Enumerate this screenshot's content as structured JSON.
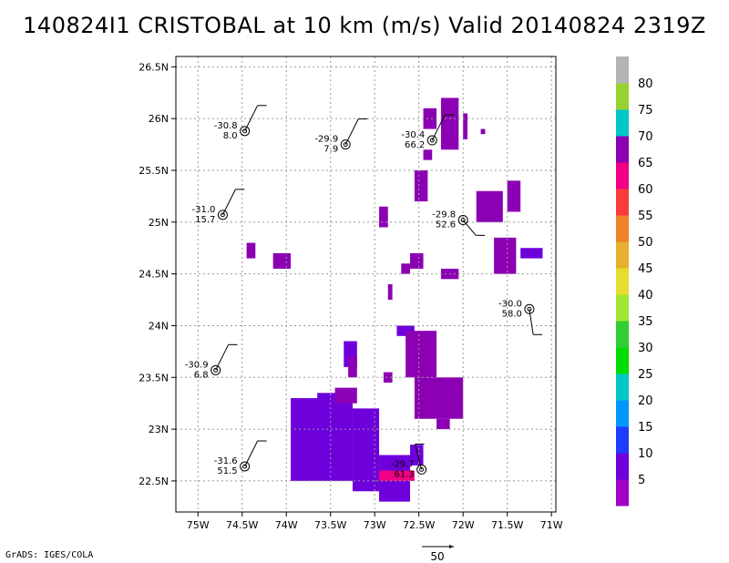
{
  "chart_data": {
    "type": "heatmap",
    "title": "140824I1 CRISTOBAL at 10 km (m/s) Valid 20140824 2319Z",
    "x_ticks": [
      "75W",
      "74.5W",
      "74W",
      "73.5W",
      "73W",
      "72.5W",
      "72W",
      "71.5W",
      "71W"
    ],
    "x_tick_values": [
      -75,
      -74.5,
      -74,
      -73.5,
      -73,
      -72.5,
      -72,
      -71.5,
      -71
    ],
    "y_ticks": [
      "22.5N",
      "23N",
      "23.5N",
      "24N",
      "24.5N",
      "25N",
      "25.5N",
      "26N",
      "26.5N"
    ],
    "y_tick_values": [
      22.5,
      23,
      23.5,
      24,
      24.5,
      25,
      25.5,
      26,
      26.5
    ],
    "xlim": [
      -75.25,
      -70.95
    ],
    "ylim": [
      22.2,
      26.6
    ],
    "grid": true,
    "colorbar": {
      "labels": [
        "5",
        "10",
        "15",
        "20",
        "25",
        "30",
        "35",
        "40",
        "45",
        "50",
        "55",
        "60",
        "65",
        "70",
        "75",
        "80"
      ],
      "colors": [
        "#a000c8",
        "#6e00dc",
        "#1e3cff",
        "#0096ff",
        "#00c8c8",
        "#00dc00",
        "#32cd32",
        "#a0e632",
        "#e6dc32",
        "#e6af2d",
        "#f08228",
        "#fa3c3c",
        "#f00082",
        "#8c00b4",
        "#00c8c8",
        "#96d232",
        "#b4b4b4"
      ]
    },
    "wind_speed_regions": [
      {
        "speed": "10",
        "cells": [
          [
            -73.95,
            23.3,
            -73.25,
            22.5
          ],
          [
            -73.25,
            23.2,
            -72.95,
            22.4
          ],
          [
            -72.95,
            22.75,
            -72.6,
            22.3
          ],
          [
            -73.35,
            23.85,
            -73.2,
            23.6
          ],
          [
            -72.75,
            24.0,
            -72.55,
            23.9
          ],
          [
            -71.35,
            24.75,
            -71.1,
            24.65
          ],
          [
            -73.05,
            23.1,
            -72.98,
            23.0
          ],
          [
            -73.65,
            23.35,
            -73.35,
            23.25
          ],
          [
            -72.6,
            22.85,
            -72.45,
            22.65
          ]
        ]
      },
      {
        "speed": "65",
        "cells": [
          [
            -72.95,
            22.6,
            -72.55,
            22.5
          ]
        ]
      },
      {
        "speed": "70",
        "cells": [
          [
            -72.45,
            26.1,
            -72.3,
            25.9
          ],
          [
            -72.25,
            26.2,
            -72.05,
            25.7
          ],
          [
            -72.0,
            26.05,
            -71.95,
            25.8
          ],
          [
            -71.8,
            25.9,
            -71.75,
            25.85
          ],
          [
            -72.45,
            25.7,
            -72.35,
            25.6
          ],
          [
            -72.55,
            25.5,
            -72.4,
            25.2
          ],
          [
            -71.85,
            25.3,
            -71.55,
            25.0
          ],
          [
            -71.5,
            25.4,
            -71.35,
            25.1
          ],
          [
            -72.95,
            25.15,
            -72.85,
            24.95
          ],
          [
            -74.45,
            24.8,
            -74.35,
            24.65
          ],
          [
            -74.15,
            24.7,
            -73.95,
            24.55
          ],
          [
            -72.6,
            24.7,
            -72.45,
            24.55
          ],
          [
            -72.7,
            24.6,
            -72.6,
            24.5
          ],
          [
            -72.25,
            24.55,
            -72.05,
            24.45
          ],
          [
            -71.65,
            24.85,
            -71.4,
            24.5
          ],
          [
            -72.85,
            24.4,
            -72.8,
            24.25
          ],
          [
            -72.65,
            23.95,
            -72.3,
            23.5
          ],
          [
            -72.55,
            23.5,
            -72.0,
            23.1
          ],
          [
            -72.3,
            23.1,
            -72.15,
            23.0
          ],
          [
            -73.3,
            23.7,
            -73.2,
            23.5
          ],
          [
            -72.9,
            23.55,
            -72.8,
            23.45
          ],
          [
            -73.45,
            23.4,
            -73.2,
            23.25
          ]
        ]
      }
    ],
    "observations": [
      {
        "lon": -74.47,
        "lat": 25.88,
        "value1": "-30.8",
        "value2": "8.0",
        "barb": "ne"
      },
      {
        "lon": -73.33,
        "lat": 25.75,
        "value1": "-29.9",
        "value2": "7.9",
        "barb": "ne"
      },
      {
        "lon": -72.35,
        "lat": 25.79,
        "value1": "-30.4",
        "value2": "66.2",
        "barb": "ne"
      },
      {
        "lon": -74.72,
        "lat": 25.07,
        "value1": "-31.0",
        "value2": "15.7",
        "barb": "ne"
      },
      {
        "lon": -72.0,
        "lat": 25.02,
        "value1": "-29.8",
        "value2": "52.6",
        "barb": "se"
      },
      {
        "lon": -71.25,
        "lat": 24.16,
        "value1": "-30.0",
        "value2": "58.0",
        "barb": "s"
      },
      {
        "lon": -74.8,
        "lat": 23.57,
        "value1": "-30.9",
        "value2": "6.8",
        "barb": "ne"
      },
      {
        "lon": -74.47,
        "lat": 22.64,
        "value1": "-31.6",
        "value2": "51.5",
        "barb": "ne"
      },
      {
        "lon": -72.47,
        "lat": 22.61,
        "value1": "-29.7",
        "value2": "61.3",
        "barb": "nw"
      }
    ],
    "reference_vector_label": "50"
  },
  "footer": "GrADS: IGES/COLA"
}
